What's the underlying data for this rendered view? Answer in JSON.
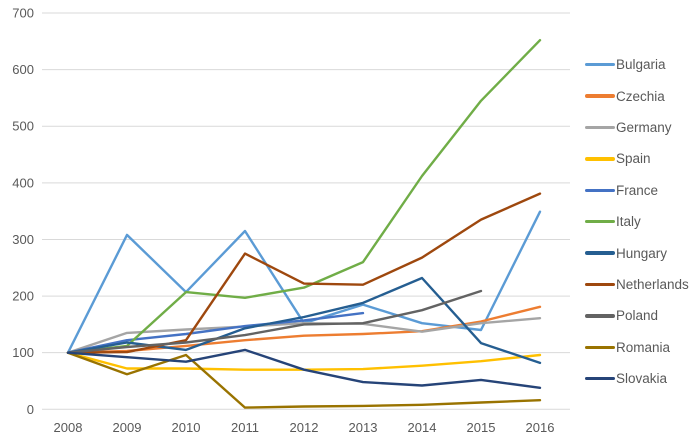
{
  "chart_data": {
    "type": "line",
    "title": "",
    "x": [
      2008,
      2009,
      2010,
      2011,
      2012,
      2013,
      2014,
      2015,
      2016
    ],
    "x_labels": [
      "2008",
      "2009",
      "2010",
      "2011",
      "2012",
      "2013",
      "2014",
      "2015",
      "2016"
    ],
    "ylim": [
      0,
      700
    ],
    "yticks": [
      0,
      100,
      200,
      300,
      400,
      500,
      600,
      700
    ],
    "y_labels": [
      "0",
      "100",
      "200",
      "300",
      "400",
      "500",
      "600",
      "700"
    ],
    "grid": true,
    "legend_position": "right",
    "series": [
      {
        "name": "Bulgaria",
        "color": "#5B9BD5",
        "values": [
          100,
          308,
          207,
          315,
          152,
          185,
          152,
          140,
          349
        ]
      },
      {
        "name": "Czechia",
        "color": "#ED7D31",
        "values": [
          100,
          103,
          112,
          122,
          130,
          133,
          138,
          155,
          181
        ]
      },
      {
        "name": "Germany",
        "color": "#A5A5A5",
        "values": [
          100,
          135,
          141,
          146,
          152,
          151,
          137,
          152,
          161
        ]
      },
      {
        "name": "Spain",
        "color": "#FFC000",
        "values": [
          100,
          72,
          72,
          70,
          70,
          71,
          77,
          85,
          96
        ]
      },
      {
        "name": "France",
        "color": "#4472C4",
        "values": [
          100,
          122,
          133,
          147,
          157,
          170,
          null,
          null,
          null
        ]
      },
      {
        "name": "Italy",
        "color": "#70AD47",
        "values": [
          100,
          112,
          207,
          197,
          215,
          260,
          412,
          545,
          652
        ]
      },
      {
        "name": "Hungary",
        "color": "#255E91",
        "values": [
          100,
          118,
          105,
          143,
          163,
          188,
          232,
          117,
          82
        ]
      },
      {
        "name": "Netherlands",
        "color": "#9E480E",
        "values": [
          100,
          101,
          122,
          275,
          222,
          220,
          268,
          335,
          381
        ]
      },
      {
        "name": "Poland",
        "color": "#636363",
        "values": [
          100,
          110,
          118,
          131,
          150,
          152,
          175,
          209,
          null
        ]
      },
      {
        "name": "Romania",
        "color": "#997300",
        "values": [
          100,
          62,
          96,
          3,
          5,
          6,
          8,
          12,
          16
        ]
      },
      {
        "name": "Slovakia",
        "color": "#264478",
        "values": [
          100,
          92,
          84,
          105,
          70,
          48,
          42,
          52,
          38
        ]
      }
    ]
  },
  "colors": {
    "gridline": "#D9D9D9",
    "axis_text": "#595959",
    "background": "#FFFFFF"
  }
}
